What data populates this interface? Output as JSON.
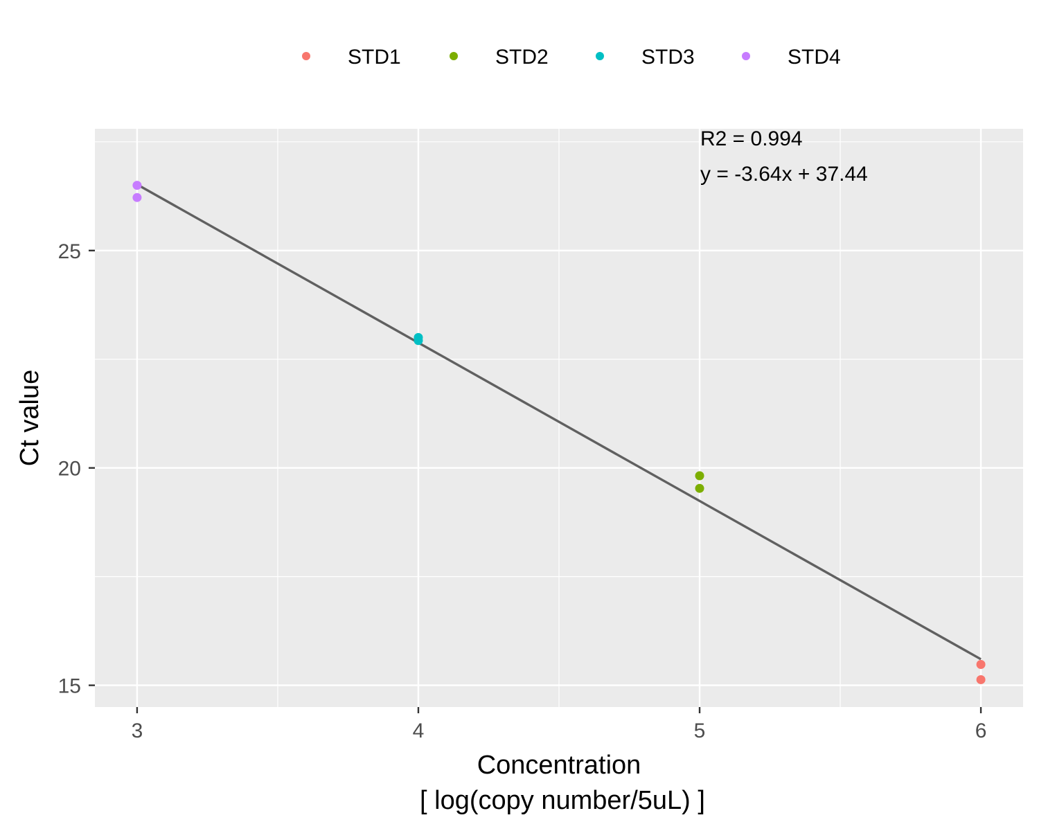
{
  "chart_data": {
    "type": "scatter",
    "xlabel": "Concentration",
    "xlabel_line2": "[ log(copy number/5uL) ]",
    "ylabel": "Ct value",
    "xlim": [
      2.85,
      6.15
    ],
    "ylim": [
      14.5,
      27.8
    ],
    "x_ticks": [
      3,
      4,
      5,
      6
    ],
    "y_ticks": [
      15,
      20,
      25
    ],
    "x_minor": [
      3.5,
      4.5,
      5.5
    ],
    "y_minor": [
      17.5,
      22.5,
      27.5
    ],
    "grid": true,
    "legend_position": "top",
    "series": [
      {
        "name": "STD1",
        "color": "#F8766D",
        "x": [
          6,
          6
        ],
        "y": [
          15.48,
          15.13
        ]
      },
      {
        "name": "STD2",
        "color": "#7CAE00",
        "x": [
          5,
          5
        ],
        "y": [
          19.82,
          19.53
        ]
      },
      {
        "name": "STD3",
        "color": "#00BFC4",
        "x": [
          4,
          4
        ],
        "y": [
          23.0,
          22.93
        ]
      },
      {
        "name": "STD4",
        "color": "#C77CFF",
        "x": [
          3,
          3
        ],
        "y": [
          26.5,
          26.22
        ]
      }
    ],
    "fit_line": {
      "slope": -3.64,
      "intercept": 37.44,
      "x_range": [
        3,
        6
      ],
      "color": "#606060"
    },
    "annotations": [
      "R2 = 0.994",
      "y = -3.64x + 37.44"
    ]
  }
}
